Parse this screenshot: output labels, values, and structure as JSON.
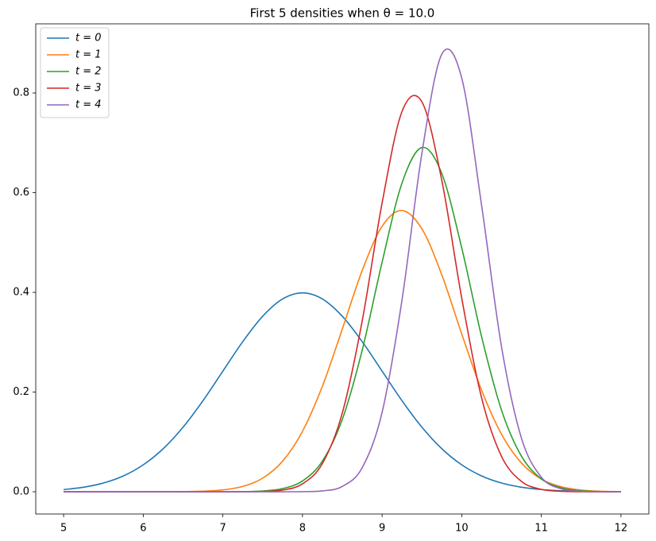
{
  "chart_data": {
    "type": "line",
    "title": "First 5 densities when θ = 10.0",
    "x": [
      5,
      5.25,
      5.5,
      5.75,
      6,
      6.25,
      6.5,
      6.75,
      7,
      7.25,
      7.5,
      7.75,
      8,
      8.25,
      8.5,
      8.75,
      9,
      9.25,
      9.5,
      9.75,
      10,
      10.25,
      10.5,
      10.75,
      11,
      11.25,
      11.5,
      11.75,
      12
    ],
    "series": [
      {
        "name": "t = 0",
        "color": "#1f77b4",
        "values": [
          0.0044,
          0.0091,
          0.0175,
          0.0317,
          0.054,
          0.0863,
          0.1295,
          0.1826,
          0.242,
          0.3011,
          0.3521,
          0.3867,
          0.3989,
          0.3867,
          0.3521,
          0.3011,
          0.242,
          0.1826,
          0.1295,
          0.0863,
          0.054,
          0.0317,
          0.0175,
          0.0091,
          0.0044,
          0.002,
          0.0009,
          0.0004,
          0.0001
        ]
      },
      {
        "name": "t = 1",
        "color": "#ff7f0e",
        "values": [
          0,
          0,
          0,
          0,
          0,
          0.0001,
          0.0003,
          0.0011,
          0.0037,
          0.0108,
          0.0273,
          0.0613,
          0.1212,
          0.2118,
          0.3263,
          0.4438,
          0.5326,
          0.5642,
          0.5273,
          0.435,
          0.3166,
          0.2035,
          0.1153,
          0.0577,
          0.0255,
          0.0099,
          0.0034,
          0.001,
          0.0003
        ]
      },
      {
        "name": "t = 2",
        "color": "#2ca02c",
        "values": [
          0,
          0,
          0,
          0,
          0,
          0,
          0,
          0,
          0.0001,
          0.0003,
          0.0015,
          0.0063,
          0.0216,
          0.0615,
          0.1451,
          0.284,
          0.4606,
          0.6194,
          0.6906,
          0.6383,
          0.4891,
          0.3107,
          0.1636,
          0.0714,
          0.0258,
          0.0078,
          0.0019,
          0.0004,
          0.0001
        ]
      },
      {
        "name": "t = 3",
        "color": "#d62728",
        "values": [
          0,
          0,
          0,
          0,
          0,
          0,
          0,
          0,
          0,
          0.0001,
          0.0006,
          0.0034,
          0.0158,
          0.0566,
          0.1579,
          0.3428,
          0.5794,
          0.7628,
          0.7821,
          0.6245,
          0.3884,
          0.1881,
          0.0709,
          0.0208,
          0.0048,
          0.0009,
          0.0001,
          0,
          0
        ]
      },
      {
        "name": "t = 4",
        "color": "#9467bd",
        "values": [
          0,
          0,
          0,
          0,
          0,
          0,
          0,
          0,
          0,
          0,
          0,
          0,
          0.0002,
          0.0017,
          0.0107,
          0.0483,
          0.1594,
          0.3848,
          0.6794,
          0.8779,
          0.8299,
          0.574,
          0.2905,
          0.1075,
          0.0291,
          0.0058,
          0.0008,
          0.0001,
          0
        ]
      }
    ],
    "xlim": [
      4.65,
      12.35
    ],
    "ylim": [
      -0.0446,
      0.9387
    ],
    "xticks": [
      5,
      6,
      7,
      8,
      9,
      10,
      11,
      12
    ],
    "yticks": [
      {
        "value": 0,
        "label": "0.0"
      },
      0.2,
      0.4,
      0.6,
      0.8
    ],
    "legend": "upper left",
    "grid": false
  }
}
